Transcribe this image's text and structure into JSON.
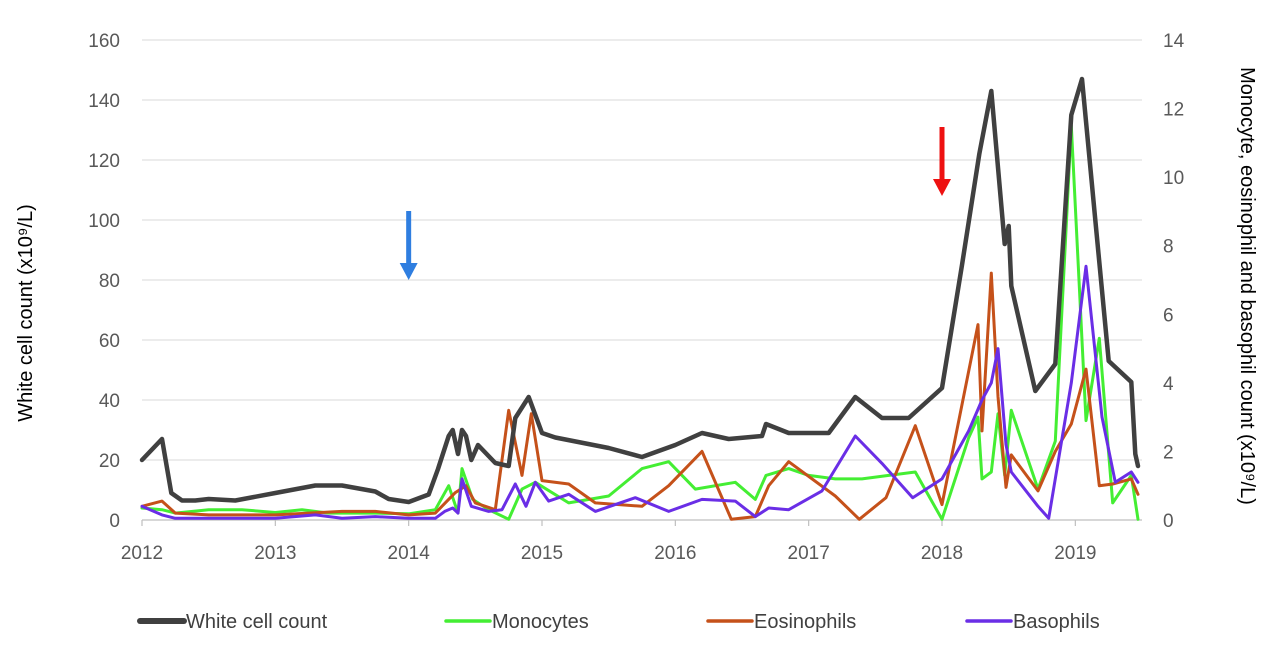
{
  "chart_data": {
    "type": "line",
    "title": "",
    "xlabel": "",
    "ylabel": "White cell count (x10⁹/L)",
    "y2label": "Monocyte, eosinophil and basophil count (x10⁹/L)",
    "xlim": [
      2012,
      2019.5
    ],
    "ylim": [
      0,
      160
    ],
    "y2lim": [
      0,
      14
    ],
    "x_ticks": [
      "2012",
      "2013",
      "2014",
      "2015",
      "2016",
      "2017",
      "2018",
      "2019"
    ],
    "y_ticks": [
      "0",
      "20",
      "40",
      "60",
      "80",
      "100",
      "120",
      "140",
      "160"
    ],
    "y2_ticks": [
      "0",
      "2",
      "4",
      "6",
      "8",
      "10",
      "12",
      "14"
    ],
    "grid": true,
    "legend": "bottom",
    "colors": {
      "white_cell": "#404040",
      "monocytes": "#44ee33",
      "eosinophils": "#c5511a",
      "basophils": "#6a2ee6",
      "blue_arrow": "#2f7ee0",
      "red_arrow": "#ee1111"
    },
    "annotations": [
      {
        "name": "blue-arrow",
        "x": 2014.0,
        "y_top": 103,
        "y_bottom": 80
      },
      {
        "name": "red-arrow",
        "x": 2018.0,
        "y_top": 131,
        "y_bottom": 108
      }
    ],
    "series": [
      {
        "name": "White cell count",
        "axis": "left",
        "points": [
          [
            2012.0,
            20
          ],
          [
            2012.15,
            27
          ],
          [
            2012.22,
            9
          ],
          [
            2012.3,
            6.5
          ],
          [
            2012.4,
            6.5
          ],
          [
            2012.5,
            7
          ],
          [
            2012.7,
            6.5
          ],
          [
            2013.0,
            9
          ],
          [
            2013.3,
            11.5
          ],
          [
            2013.5,
            11.5
          ],
          [
            2013.75,
            9.5
          ],
          [
            2013.85,
            7
          ],
          [
            2014.0,
            6
          ],
          [
            2014.15,
            8.5
          ],
          [
            2014.22,
            17
          ],
          [
            2014.3,
            28
          ],
          [
            2014.33,
            30
          ],
          [
            2014.37,
            22
          ],
          [
            2014.4,
            30
          ],
          [
            2014.43,
            28
          ],
          [
            2014.47,
            20
          ],
          [
            2014.52,
            25
          ],
          [
            2014.65,
            19
          ],
          [
            2014.75,
            18
          ],
          [
            2014.8,
            34
          ],
          [
            2014.9,
            41
          ],
          [
            2015.0,
            29
          ],
          [
            2015.1,
            27.5
          ],
          [
            2015.5,
            24
          ],
          [
            2015.75,
            21
          ],
          [
            2016.0,
            25
          ],
          [
            2016.2,
            29
          ],
          [
            2016.4,
            27
          ],
          [
            2016.65,
            28
          ],
          [
            2016.68,
            32
          ],
          [
            2016.85,
            29
          ],
          [
            2017.15,
            29
          ],
          [
            2017.35,
            41
          ],
          [
            2017.55,
            34
          ],
          [
            2017.75,
            34
          ],
          [
            2018.0,
            44
          ],
          [
            2018.15,
            85
          ],
          [
            2018.28,
            122
          ],
          [
            2018.37,
            143
          ],
          [
            2018.47,
            92
          ],
          [
            2018.5,
            98
          ],
          [
            2018.52,
            78
          ],
          [
            2018.7,
            43
          ],
          [
            2018.85,
            52
          ],
          [
            2018.97,
            135
          ],
          [
            2019.05,
            147
          ],
          [
            2019.15,
            100
          ],
          [
            2019.25,
            53
          ],
          [
            2019.42,
            46
          ],
          [
            2019.45,
            22
          ],
          [
            2019.47,
            18
          ]
        ]
      },
      {
        "name": "Monocytes",
        "axis": "right",
        "points": [
          [
            2012.0,
            0.35
          ],
          [
            2012.15,
            0.3
          ],
          [
            2012.25,
            0.2
          ],
          [
            2012.5,
            0.3
          ],
          [
            2012.75,
            0.3
          ],
          [
            2013.0,
            0.22
          ],
          [
            2013.2,
            0.3
          ],
          [
            2013.4,
            0.2
          ],
          [
            2013.75,
            0.2
          ],
          [
            2014.0,
            0.18
          ],
          [
            2014.2,
            0.3
          ],
          [
            2014.3,
            1.0
          ],
          [
            2014.37,
            0.2
          ],
          [
            2014.4,
            1.5
          ],
          [
            2014.48,
            0.6
          ],
          [
            2014.6,
            0.3
          ],
          [
            2014.75,
            0.02
          ],
          [
            2014.85,
            0.9
          ],
          [
            2014.95,
            1.1
          ],
          [
            2015.2,
            0.5
          ],
          [
            2015.5,
            0.7
          ],
          [
            2015.75,
            1.5
          ],
          [
            2015.95,
            1.7
          ],
          [
            2016.15,
            0.9
          ],
          [
            2016.45,
            1.1
          ],
          [
            2016.6,
            0.6
          ],
          [
            2016.68,
            1.3
          ],
          [
            2016.85,
            1.5
          ],
          [
            2017.0,
            1.3
          ],
          [
            2017.2,
            1.2
          ],
          [
            2017.4,
            1.2
          ],
          [
            2017.6,
            1.3
          ],
          [
            2017.8,
            1.4
          ],
          [
            2018.0,
            0.02
          ],
          [
            2018.2,
            2.4
          ],
          [
            2018.27,
            3.0
          ],
          [
            2018.3,
            1.2
          ],
          [
            2018.37,
            1.4
          ],
          [
            2018.42,
            3.1
          ],
          [
            2018.47,
            1.3
          ],
          [
            2018.52,
            3.2
          ],
          [
            2018.72,
            0.9
          ],
          [
            2018.85,
            2.3
          ],
          [
            2018.97,
            11.5
          ],
          [
            2019.08,
            2.9
          ],
          [
            2019.18,
            5.3
          ],
          [
            2019.28,
            0.5
          ],
          [
            2019.42,
            1.3
          ],
          [
            2019.47,
            0.02
          ]
        ]
      },
      {
        "name": "Eosinophils",
        "axis": "right",
        "points": [
          [
            2012.0,
            0.4
          ],
          [
            2012.15,
            0.55
          ],
          [
            2012.25,
            0.2
          ],
          [
            2012.5,
            0.15
          ],
          [
            2013.0,
            0.15
          ],
          [
            2013.5,
            0.25
          ],
          [
            2013.75,
            0.25
          ],
          [
            2014.0,
            0.15
          ],
          [
            2014.2,
            0.2
          ],
          [
            2014.35,
            0.8
          ],
          [
            2014.43,
            1.0
          ],
          [
            2014.5,
            0.5
          ],
          [
            2014.65,
            0.3
          ],
          [
            2014.75,
            3.2
          ],
          [
            2014.85,
            1.3
          ],
          [
            2014.92,
            3.1
          ],
          [
            2015.0,
            1.15
          ],
          [
            2015.2,
            1.05
          ],
          [
            2015.4,
            0.5
          ],
          [
            2015.75,
            0.4
          ],
          [
            2015.95,
            1.0
          ],
          [
            2016.2,
            2.0
          ],
          [
            2016.42,
            0.02
          ],
          [
            2016.6,
            0.1
          ],
          [
            2016.7,
            1.0
          ],
          [
            2016.85,
            1.7
          ],
          [
            2017.2,
            0.7
          ],
          [
            2017.38,
            0.02
          ],
          [
            2017.58,
            0.65
          ],
          [
            2017.8,
            2.75
          ],
          [
            2018.0,
            0.45
          ],
          [
            2018.27,
            5.7
          ],
          [
            2018.3,
            2.6
          ],
          [
            2018.37,
            7.2
          ],
          [
            2018.42,
            3.6
          ],
          [
            2018.48,
            0.95
          ],
          [
            2018.52,
            1.9
          ],
          [
            2018.72,
            0.85
          ],
          [
            2018.85,
            2.0
          ],
          [
            2018.97,
            2.8
          ],
          [
            2019.08,
            4.4
          ],
          [
            2019.18,
            1.0
          ],
          [
            2019.28,
            1.05
          ],
          [
            2019.42,
            1.2
          ],
          [
            2019.47,
            0.75
          ]
        ]
      },
      {
        "name": "Basophils",
        "axis": "right",
        "points": [
          [
            2012.0,
            0.4
          ],
          [
            2012.15,
            0.15
          ],
          [
            2012.25,
            0.05
          ],
          [
            2012.5,
            0.05
          ],
          [
            2013.0,
            0.05
          ],
          [
            2013.3,
            0.15
          ],
          [
            2013.5,
            0.05
          ],
          [
            2013.75,
            0.1
          ],
          [
            2014.0,
            0.05
          ],
          [
            2014.2,
            0.05
          ],
          [
            2014.27,
            0.25
          ],
          [
            2014.33,
            0.35
          ],
          [
            2014.37,
            0.2
          ],
          [
            2014.4,
            1.2
          ],
          [
            2014.47,
            0.4
          ],
          [
            2014.6,
            0.25
          ],
          [
            2014.7,
            0.3
          ],
          [
            2014.8,
            1.05
          ],
          [
            2014.88,
            0.4
          ],
          [
            2014.95,
            1.1
          ],
          [
            2015.05,
            0.55
          ],
          [
            2015.2,
            0.75
          ],
          [
            2015.4,
            0.25
          ],
          [
            2015.7,
            0.65
          ],
          [
            2015.95,
            0.25
          ],
          [
            2016.2,
            0.6
          ],
          [
            2016.45,
            0.55
          ],
          [
            2016.6,
            0.1
          ],
          [
            2016.7,
            0.35
          ],
          [
            2016.85,
            0.3
          ],
          [
            2017.1,
            0.85
          ],
          [
            2017.35,
            2.45
          ],
          [
            2017.55,
            1.65
          ],
          [
            2017.78,
            0.65
          ],
          [
            2018.0,
            1.2
          ],
          [
            2018.2,
            2.6
          ],
          [
            2018.3,
            3.5
          ],
          [
            2018.37,
            4.0
          ],
          [
            2018.42,
            5.0
          ],
          [
            2018.48,
            2.2
          ],
          [
            2018.52,
            1.4
          ],
          [
            2018.72,
            0.4
          ],
          [
            2018.8,
            0.05
          ],
          [
            2018.97,
            4.0
          ],
          [
            2019.08,
            7.4
          ],
          [
            2019.2,
            3.0
          ],
          [
            2019.3,
            1.1
          ],
          [
            2019.42,
            1.4
          ],
          [
            2019.47,
            1.1
          ]
        ]
      }
    ]
  }
}
